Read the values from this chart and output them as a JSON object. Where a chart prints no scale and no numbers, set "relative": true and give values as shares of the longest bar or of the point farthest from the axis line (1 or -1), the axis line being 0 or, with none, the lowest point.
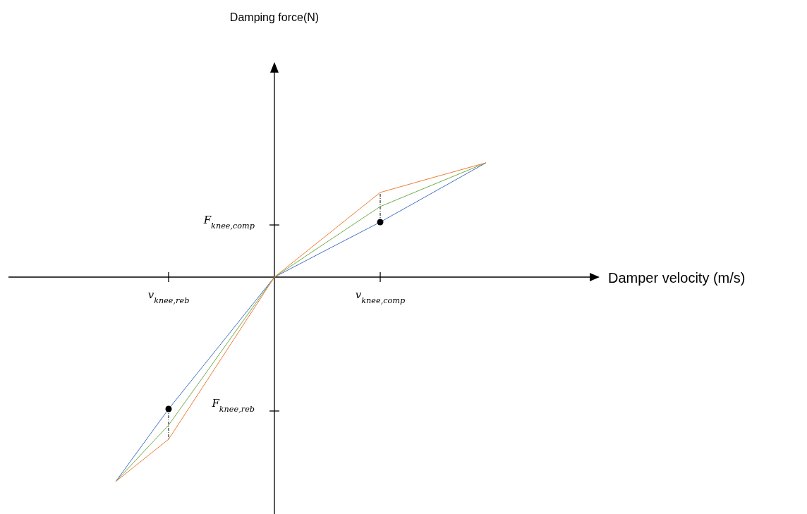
{
  "chart_data": {
    "type": "line",
    "relative": true,
    "categories": [
      null,
      "v$_{knee,reb}$",
      null,
      null,
      null,
      "v$_{knee,comp}$",
      null,
      null
    ],
    "series": [
      {
        "color": "#4472c4",
        "values": [
          -1,
          -0.645,
          -0.323,
          0,
          0.135,
          0.269,
          0.414,
          0.559
        ]
      },
      {
        "color": "#70ad47",
        "values": [
          -1,
          -0.724,
          -0.362,
          0,
          0.173,
          0.345,
          0.452,
          0.559
        ]
      },
      {
        "color": "#ed7d31",
        "values": [
          -1,
          -0.793,
          -0.397,
          0,
          0.207,
          0.414,
          0.487,
          0.559
        ]
      },
      {
        "type": "scatter",
        "marker": "circle",
        "color": "#000000",
        "values": [
          null,
          -0.645,
          null,
          null,
          null,
          0.269,
          null,
          null
        ]
      }
    ],
    "annotations": [
      "F$_{knee,comp}$",
      "F$_{knee,reb}$",
      "Damper velocity (m/s)",
      "Damping force(N)"
    ]
  }
}
